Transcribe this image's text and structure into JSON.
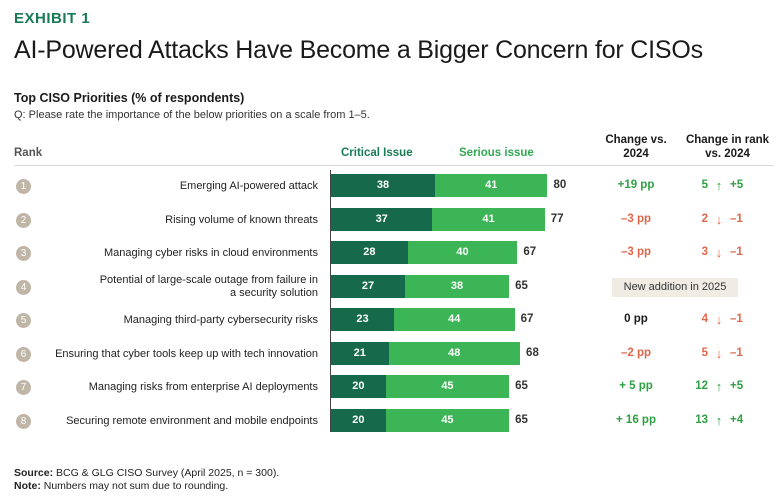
{
  "exhibit_label": "EXHIBIT 1",
  "title": "AI-Powered Attacks Have Become a Bigger Concern for CISOs",
  "subtitle": "Top CISO Priorities (% of respondents)",
  "question": "Q: Please rate the importance of the below priorities on a scale from 1–5.",
  "headers": {
    "rank": "Rank",
    "critical": "Critical Issue",
    "serious": "Serious issue",
    "change_line1": "Change vs.",
    "change_line2": "2024",
    "rank_change_line1": "Change in rank",
    "rank_change_line2": "vs. 2024"
  },
  "colors": {
    "critical": "#166a4b",
    "serious": "#3cb556",
    "positive": "#2ea043",
    "negative": "#e0664a",
    "neutral": "#1a1a1a"
  },
  "chart_data": {
    "type": "bar",
    "orientation": "horizontal",
    "stacked": true,
    "title": "Top CISO Priorities (% of respondents)",
    "categories": [
      "Emerging AI-powered attack",
      "Rising volume of known threats",
      "Managing cyber risks in cloud environments",
      "Potential of large-scale outage from failure in a security solution",
      "Managing third-party cybersecurity risks",
      "Ensuring that cyber tools keep up with tech innovation",
      "Managing risks from enterprise AI deployments",
      "Securing remote environment and mobile endpoints"
    ],
    "series": [
      {
        "name": "Critical Issue",
        "values": [
          38,
          37,
          28,
          27,
          23,
          21,
          20,
          20
        ]
      },
      {
        "name": "Serious issue",
        "values": [
          41,
          41,
          40,
          38,
          44,
          48,
          45,
          45
        ]
      }
    ],
    "totals": [
      80,
      77,
      67,
      65,
      67,
      68,
      65,
      65
    ],
    "rows": [
      {
        "rank": "1",
        "label_lines": [
          "Emerging AI-powered attack"
        ],
        "change": "+19 pp",
        "change_sign": "positive",
        "rank_now": "5",
        "rank_dir": "up",
        "rank_delta": "+5"
      },
      {
        "rank": "2",
        "label_lines": [
          "Rising volume of known threats"
        ],
        "change": "–3 pp",
        "change_sign": "negative",
        "rank_now": "2",
        "rank_dir": "down",
        "rank_delta": "–1"
      },
      {
        "rank": "3",
        "label_lines": [
          "Managing cyber risks in cloud environments"
        ],
        "change": "–3 pp",
        "change_sign": "negative",
        "rank_now": "3",
        "rank_dir": "down",
        "rank_delta": "–1"
      },
      {
        "rank": "4",
        "label_lines": [
          "Potential of large-scale outage from failure in",
          "a security solution"
        ],
        "new_note": "New addition in 2025"
      },
      {
        "rank": "5",
        "label_lines": [
          "Managing third-party cybersecurity risks"
        ],
        "change": "0 pp",
        "change_sign": "neutral",
        "rank_now": "4",
        "rank_dir": "down",
        "rank_delta": "–1"
      },
      {
        "rank": "6",
        "label_lines": [
          "Ensuring that cyber tools keep up with tech innovation"
        ],
        "change": "–2 pp",
        "change_sign": "negative",
        "rank_now": "5",
        "rank_dir": "down",
        "rank_delta": "–1"
      },
      {
        "rank": "7",
        "label_lines": [
          "Managing risks from enterprise AI deployments"
        ],
        "change": "+ 5 pp",
        "change_sign": "positive",
        "rank_now": "12",
        "rank_dir": "up",
        "rank_delta": "+5"
      },
      {
        "rank": "8",
        "label_lines": [
          "Securing remote environment and mobile endpoints"
        ],
        "change": "+ 16 pp",
        "change_sign": "positive",
        "rank_now": "13",
        "rank_dir": "up",
        "rank_delta": "+4"
      }
    ]
  },
  "footer": {
    "source_label": "Source:",
    "source_text": " BCG & GLG CISO Survey (April 2025, n = 300).",
    "note_label": "Note:",
    "note_text": " Numbers may not sum due to rounding."
  }
}
